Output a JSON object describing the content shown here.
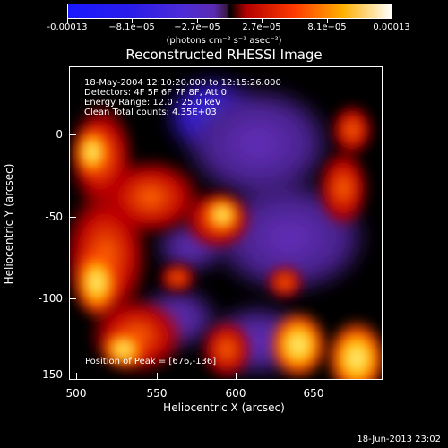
{
  "colorbar": {
    "ticks": [
      "-0.00013",
      "−8.1e−05",
      "−2.7e−05",
      "2.7e−05",
      "8.1e−05",
      "0.00013"
    ],
    "units": "(photons cm⁻² s⁻¹ asec⁻²)"
  },
  "title": "Reconstructed RHESSI Image",
  "info": {
    "time": "18-May-2004 12:10:20.000 to 12:15:26.000",
    "detectors": "Detectors: 4F 5F 6F 7F 8F, Att 0",
    "energy": "Energy Range: 12.0 - 25.0 keV",
    "clean": "Clean    Total counts: 4.35E+03",
    "peak": "Position of Peak = [676,-136]"
  },
  "axes": {
    "x_ticks": [
      "500",
      "550",
      "600",
      "650"
    ],
    "y_ticks": [
      "0",
      "-50",
      "-100",
      "-150"
    ],
    "x_label": "Heliocentric X (arcsec)",
    "y_label": "Heliocentric Y (arcsec)"
  },
  "timestamp": "18-Jun-2013 23:02",
  "colors": {
    "neg_max": "#1818ff",
    "neg_mid": "#5a2bb3",
    "zero": "#000000",
    "pos_mid": "#ff3a00",
    "pos_max": "#ffffff"
  }
}
